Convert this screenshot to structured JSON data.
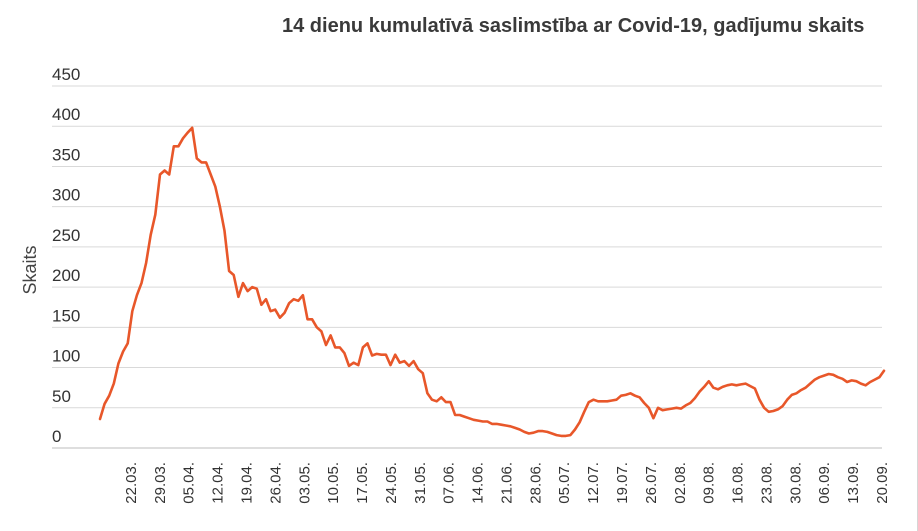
{
  "chart_data": {
    "type": "line",
    "title": "14 dienu kumulatīvā saslimstība ar Covid-19, gadījumu skaits",
    "ylabel": "Skaits",
    "xlabel": "",
    "ylim": [
      0,
      450
    ],
    "yticks": [
      0,
      50,
      100,
      150,
      200,
      250,
      300,
      350,
      400,
      450
    ],
    "grid": true,
    "line_color": "#e8572a",
    "x_tick_labels": [
      "22.03.",
      "29.03.",
      "05.04.",
      "12.04.",
      "19.04.",
      "26.04.",
      "03.05.",
      "10.05.",
      "17.05.",
      "24.05.",
      "31.05.",
      "07.06.",
      "14.06.",
      "21.06.",
      "28.06.",
      "05.07.",
      "12.07.",
      "19.07.",
      "26.07.",
      "02.08.",
      "09.08.",
      "16.08.",
      "23.08.",
      "30.08.",
      "06.09.",
      "13.09.",
      "20.09."
    ],
    "series": [
      {
        "values": [
          [
            0,
            36
          ],
          [
            1,
            55
          ],
          [
            2,
            65
          ],
          [
            3,
            80
          ],
          [
            4,
            105
          ],
          [
            5,
            120
          ],
          [
            6,
            130
          ],
          [
            7,
            170
          ],
          [
            8,
            190
          ],
          [
            9,
            205
          ],
          [
            10,
            230
          ],
          [
            11,
            265
          ],
          [
            12,
            290
          ],
          [
            13,
            340
          ],
          [
            14,
            345
          ],
          [
            15,
            340
          ],
          [
            16,
            375
          ],
          [
            17,
            375
          ],
          [
            18,
            385
          ],
          [
            19,
            392
          ],
          [
            20,
            398
          ],
          [
            21,
            360
          ],
          [
            22,
            355
          ],
          [
            23,
            355
          ],
          [
            24,
            340
          ],
          [
            25,
            325
          ],
          [
            26,
            300
          ],
          [
            27,
            270
          ],
          [
            28,
            220
          ],
          [
            29,
            215
          ],
          [
            30,
            188
          ],
          [
            31,
            205
          ],
          [
            32,
            195
          ],
          [
            33,
            200
          ],
          [
            34,
            198
          ],
          [
            35,
            178
          ],
          [
            36,
            185
          ],
          [
            37,
            170
          ],
          [
            38,
            172
          ],
          [
            39,
            162
          ],
          [
            40,
            168
          ],
          [
            41,
            180
          ],
          [
            42,
            185
          ],
          [
            43,
            183
          ],
          [
            44,
            190
          ],
          [
            45,
            160
          ],
          [
            46,
            160
          ],
          [
            47,
            150
          ],
          [
            48,
            145
          ],
          [
            49,
            128
          ],
          [
            50,
            140
          ],
          [
            51,
            125
          ],
          [
            52,
            125
          ],
          [
            53,
            118
          ],
          [
            54,
            102
          ],
          [
            55,
            106
          ],
          [
            56,
            103
          ],
          [
            57,
            125
          ],
          [
            58,
            130
          ],
          [
            59,
            115
          ],
          [
            60,
            117
          ],
          [
            61,
            116
          ],
          [
            62,
            116
          ],
          [
            63,
            103
          ],
          [
            64,
            116
          ],
          [
            65,
            106
          ],
          [
            66,
            108
          ],
          [
            67,
            102
          ],
          [
            68,
            108
          ],
          [
            69,
            98
          ],
          [
            70,
            93
          ],
          [
            71,
            68
          ],
          [
            72,
            60
          ],
          [
            73,
            58
          ],
          [
            74,
            63
          ],
          [
            75,
            57
          ],
          [
            76,
            57
          ],
          [
            77,
            41
          ],
          [
            78,
            41
          ],
          [
            79,
            39
          ],
          [
            80,
            37
          ],
          [
            81,
            35
          ],
          [
            82,
            34
          ],
          [
            83,
            33
          ],
          [
            84,
            33
          ],
          [
            85,
            30
          ],
          [
            86,
            30
          ],
          [
            87,
            29
          ],
          [
            88,
            28
          ],
          [
            89,
            27
          ],
          [
            90,
            25
          ],
          [
            91,
            23
          ],
          [
            92,
            20
          ],
          [
            93,
            18
          ],
          [
            94,
            19
          ],
          [
            95,
            21
          ],
          [
            96,
            21
          ],
          [
            97,
            20
          ],
          [
            98,
            18
          ],
          [
            99,
            16
          ],
          [
            100,
            15
          ],
          [
            101,
            15
          ],
          [
            102,
            16
          ],
          [
            103,
            23
          ],
          [
            104,
            32
          ],
          [
            105,
            45
          ],
          [
            106,
            57
          ],
          [
            107,
            60
          ],
          [
            108,
            58
          ],
          [
            109,
            58
          ],
          [
            110,
            58
          ],
          [
            111,
            59
          ],
          [
            112,
            60
          ],
          [
            113,
            65
          ],
          [
            114,
            66
          ],
          [
            115,
            68
          ],
          [
            116,
            65
          ],
          [
            117,
            63
          ],
          [
            118,
            56
          ],
          [
            119,
            50
          ],
          [
            120,
            37
          ],
          [
            121,
            50
          ],
          [
            122,
            47
          ],
          [
            123,
            48
          ],
          [
            124,
            49
          ],
          [
            125,
            50
          ],
          [
            126,
            49
          ],
          [
            127,
            53
          ],
          [
            128,
            56
          ],
          [
            129,
            62
          ],
          [
            130,
            70
          ],
          [
            131,
            76
          ],
          [
            132,
            83
          ],
          [
            133,
            75
          ],
          [
            134,
            73
          ],
          [
            135,
            76
          ],
          [
            136,
            78
          ],
          [
            137,
            79
          ],
          [
            138,
            78
          ],
          [
            139,
            79
          ],
          [
            140,
            80
          ],
          [
            141,
            77
          ],
          [
            142,
            74
          ],
          [
            143,
            60
          ],
          [
            144,
            50
          ],
          [
            145,
            45
          ],
          [
            146,
            46
          ],
          [
            147,
            48
          ],
          [
            148,
            52
          ],
          [
            149,
            60
          ],
          [
            150,
            66
          ],
          [
            151,
            68
          ],
          [
            152,
            72
          ],
          [
            153,
            75
          ],
          [
            154,
            80
          ],
          [
            155,
            85
          ],
          [
            156,
            88
          ],
          [
            157,
            90
          ],
          [
            158,
            92
          ],
          [
            159,
            91
          ],
          [
            160,
            88
          ],
          [
            161,
            86
          ],
          [
            162,
            82
          ],
          [
            163,
            84
          ],
          [
            164,
            83
          ],
          [
            165,
            80
          ],
          [
            166,
            78
          ],
          [
            167,
            82
          ],
          [
            168,
            85
          ],
          [
            169,
            88
          ],
          [
            170,
            96
          ]
        ]
      }
    ]
  }
}
